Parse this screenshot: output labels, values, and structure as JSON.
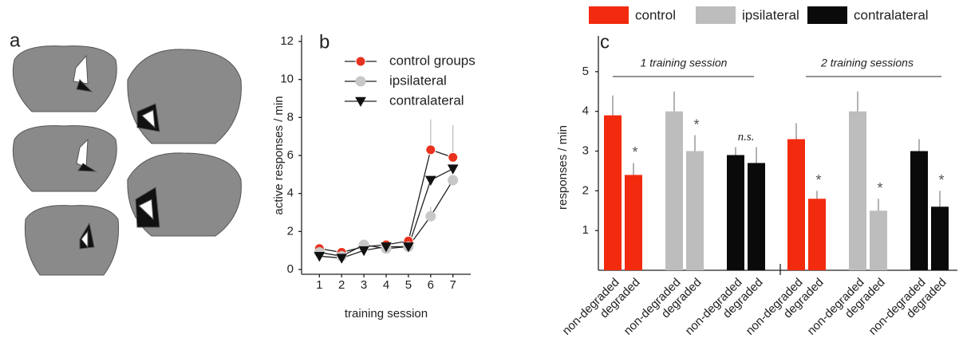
{
  "panel_a": {
    "label": "a"
  },
  "chart_data": [
    {
      "type": "line",
      "panel_label": "b",
      "x_label": "training session",
      "y_label": "active responses / min",
      "x": [
        1,
        2,
        3,
        4,
        5,
        6,
        7
      ],
      "xlim": [
        0.2,
        7.8
      ],
      "xticks": [
        1,
        2,
        3,
        4,
        5,
        6,
        7
      ],
      "ylim": [
        0,
        12
      ],
      "yticks": [
        0,
        2,
        4,
        6,
        8,
        10,
        12
      ],
      "series": [
        {
          "name": "control groups",
          "color": "#e8321e",
          "marker": "circle",
          "values": [
            1.1,
            0.9,
            1.2,
            1.3,
            1.5,
            6.3,
            5.9
          ],
          "errors": [
            null,
            null,
            null,
            null,
            null,
            1.6,
            1.7
          ]
        },
        {
          "name": "ipsilateral",
          "color": "#c8c8c8",
          "marker": "circle",
          "values": [
            0.9,
            0.7,
            1.3,
            1.1,
            1.2,
            2.8,
            4.7
          ],
          "errors": [
            null,
            null,
            null,
            null,
            null,
            0.5,
            null
          ]
        },
        {
          "name": "contralateral",
          "color": "#111111",
          "marker": "triangle-down",
          "values": [
            0.7,
            0.6,
            1.0,
            1.2,
            1.2,
            4.7,
            5.3
          ],
          "errors": [
            null,
            null,
            null,
            null,
            null,
            null,
            null
          ]
        }
      ]
    },
    {
      "type": "bar",
      "panel_label": "c",
      "y_label": "responses / min",
      "groups": [
        "1 training session",
        "2 training sessions"
      ],
      "categories": [
        "non-degraded",
        "degraded",
        "non-degraded",
        "degraded",
        "non-degraded",
        "degraded",
        "non-degraded",
        "degraded",
        "non-degraded",
        "degraded",
        "non-degraded",
        "degraded"
      ],
      "ylim": [
        0,
        5.9
      ],
      "yticks": [
        1,
        2,
        3,
        4,
        5
      ],
      "series": [
        {
          "name": "control",
          "color": "#f22a0e",
          "values": [
            3.9,
            2.4,
            null,
            null,
            null,
            null,
            3.3,
            1.8,
            null,
            null,
            null,
            null
          ],
          "errors": [
            0.5,
            0.3,
            null,
            null,
            null,
            null,
            0.4,
            0.2,
            null,
            null,
            null,
            null
          ],
          "annotations": [
            null,
            "*",
            null,
            null,
            null,
            null,
            null,
            "*",
            null,
            null,
            null,
            null
          ]
        },
        {
          "name": "ipsilateral",
          "color": "#bdbdbd",
          "values": [
            null,
            null,
            4.0,
            3.0,
            null,
            null,
            null,
            null,
            4.0,
            1.5,
            null,
            null
          ],
          "errors": [
            null,
            null,
            0.5,
            0.4,
            null,
            null,
            null,
            null,
            0.5,
            0.3,
            null,
            null
          ],
          "annotations": [
            null,
            null,
            null,
            "*",
            null,
            null,
            null,
            null,
            null,
            "*",
            null,
            null
          ]
        },
        {
          "name": "contralateral",
          "color": "#0a0a0a",
          "values": [
            null,
            null,
            null,
            null,
            2.9,
            2.7,
            null,
            null,
            null,
            null,
            3.0,
            1.6
          ],
          "errors": [
            null,
            null,
            null,
            null,
            0.2,
            0.4,
            null,
            null,
            null,
            null,
            0.3,
            0.4
          ],
          "annotations": [
            null,
            null,
            null,
            null,
            "n.s.",
            null,
            null,
            null,
            null,
            null,
            null,
            "*"
          ]
        }
      ]
    }
  ]
}
